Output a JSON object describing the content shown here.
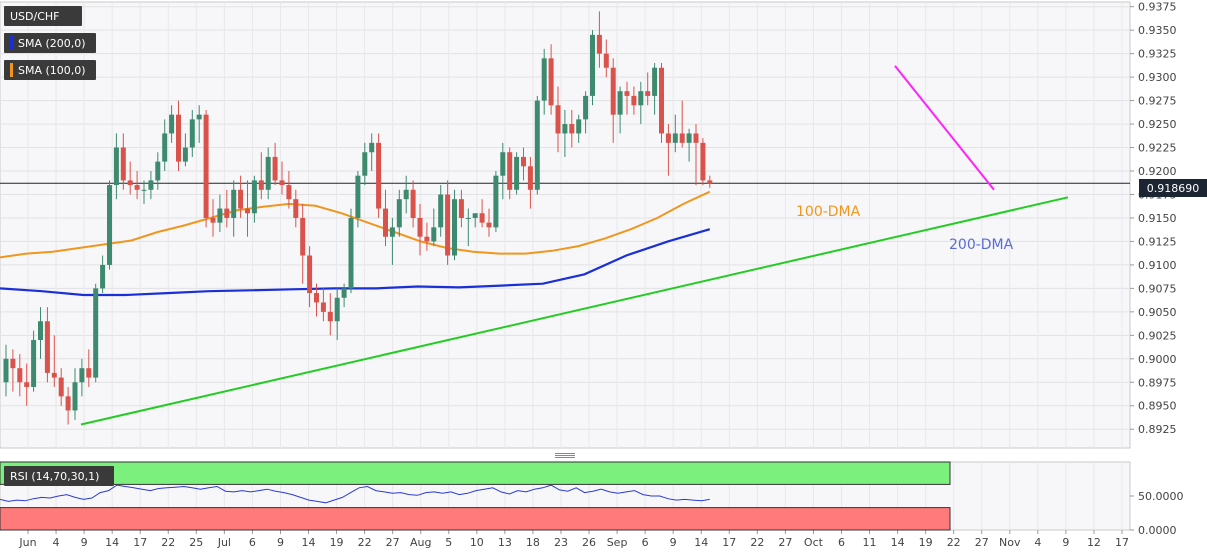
{
  "chart_data": {
    "type": "candlestick",
    "symbol": "USD/CHF",
    "last_price": "0.918690",
    "y_ticks": [
      "0.9375",
      "0.9350",
      "0.9325",
      "0.9300",
      "0.9275",
      "0.9250",
      "0.9225",
      "0.9200",
      "0.9175",
      "0.9150",
      "0.9125",
      "0.9100",
      "0.9075",
      "0.9050",
      "0.9025",
      "0.9000",
      "0.8975",
      "0.8950",
      "0.8925"
    ],
    "ylim": [
      0.8905,
      0.938
    ],
    "x_tick_labels": [
      "Jun",
      "4",
      "9",
      "14",
      "17",
      "22",
      "25",
      "Jul",
      "6",
      "9",
      "14",
      "19",
      "22",
      "27",
      "Aug",
      "5",
      "10",
      "13",
      "18",
      "23",
      "26",
      "Sep",
      "6",
      "9",
      "14",
      "17",
      "22",
      "27",
      "Oct",
      "6",
      "11",
      "14",
      "19",
      "22",
      "27",
      "Nov",
      "4",
      "9",
      "12",
      "17"
    ],
    "indicators": {
      "sma200_label": "SMA (200,0)",
      "sma100_label": "SMA (100,0)",
      "sma200_color": "#1a2fd6",
      "sma100_color": "#f0961e",
      "annotation_100": "100-DMA",
      "annotation_200": "200-DMA"
    },
    "trendline_colors": {
      "support": "#22cc22",
      "resistance": "#ff22ff"
    },
    "colors": {
      "up": "#3d8a6e",
      "down": "#d9524b"
    },
    "candles": [
      [
        0.8975,
        0.9015,
        0.896,
        0.9
      ],
      [
        0.9,
        0.901,
        0.8965,
        0.899
      ],
      [
        0.899,
        0.9005,
        0.896,
        0.8975
      ],
      [
        0.8975,
        0.8995,
        0.895,
        0.897
      ],
      [
        0.897,
        0.903,
        0.8965,
        0.902
      ],
      [
        0.902,
        0.9055,
        0.9,
        0.904
      ],
      [
        0.904,
        0.9055,
        0.8975,
        0.8985
      ],
      [
        0.8985,
        0.9025,
        0.897,
        0.898
      ],
      [
        0.898,
        0.899,
        0.895,
        0.896
      ],
      [
        0.896,
        0.897,
        0.893,
        0.8945
      ],
      [
        0.8945,
        0.899,
        0.8935,
        0.8975
      ],
      [
        0.8975,
        0.9,
        0.896,
        0.899
      ],
      [
        0.899,
        0.901,
        0.897,
        0.898
      ],
      [
        0.898,
        0.908,
        0.8975,
        0.9075
      ],
      [
        0.9075,
        0.911,
        0.907,
        0.91
      ],
      [
        0.91,
        0.919,
        0.9095,
        0.9185
      ],
      [
        0.9185,
        0.924,
        0.917,
        0.9225
      ],
      [
        0.9225,
        0.924,
        0.918,
        0.919
      ],
      [
        0.919,
        0.921,
        0.9175,
        0.9185
      ],
      [
        0.9185,
        0.92,
        0.917,
        0.918
      ],
      [
        0.918,
        0.919,
        0.9165,
        0.918
      ],
      [
        0.918,
        0.92,
        0.917,
        0.919
      ],
      [
        0.919,
        0.922,
        0.918,
        0.921
      ],
      [
        0.921,
        0.9255,
        0.92,
        0.924
      ],
      [
        0.924,
        0.927,
        0.923,
        0.926
      ],
      [
        0.926,
        0.9275,
        0.92,
        0.921
      ],
      [
        0.921,
        0.924,
        0.9205,
        0.9225
      ],
      [
        0.9225,
        0.9265,
        0.9215,
        0.9255
      ],
      [
        0.9255,
        0.927,
        0.923,
        0.926
      ],
      [
        0.926,
        0.9265,
        0.914,
        0.915
      ],
      [
        0.915,
        0.917,
        0.913,
        0.9145
      ],
      [
        0.9145,
        0.9175,
        0.9135,
        0.916
      ],
      [
        0.916,
        0.918,
        0.914,
        0.915
      ],
      [
        0.915,
        0.919,
        0.913,
        0.918
      ],
      [
        0.918,
        0.9195,
        0.915,
        0.916
      ],
      [
        0.916,
        0.919,
        0.913,
        0.9155
      ],
      [
        0.9155,
        0.9195,
        0.9145,
        0.919
      ],
      [
        0.919,
        0.922,
        0.917,
        0.918
      ],
      [
        0.918,
        0.9225,
        0.917,
        0.9215
      ],
      [
        0.9215,
        0.923,
        0.9185,
        0.919
      ],
      [
        0.919,
        0.921,
        0.9175,
        0.9185
      ],
      [
        0.9185,
        0.92,
        0.916,
        0.917
      ],
      [
        0.917,
        0.918,
        0.914,
        0.915
      ],
      [
        0.915,
        0.9165,
        0.908,
        0.911
      ],
      [
        0.911,
        0.912,
        0.9055,
        0.907
      ],
      [
        0.907,
        0.908,
        0.9045,
        0.906
      ],
      [
        0.906,
        0.9075,
        0.904,
        0.905
      ],
      [
        0.905,
        0.907,
        0.9025,
        0.904
      ],
      [
        0.904,
        0.9075,
        0.902,
        0.9065
      ],
      [
        0.9065,
        0.908,
        0.9055,
        0.9075
      ],
      [
        0.9075,
        0.916,
        0.907,
        0.915
      ],
      [
        0.915,
        0.92,
        0.914,
        0.9195
      ],
      [
        0.9195,
        0.923,
        0.9185,
        0.922
      ],
      [
        0.922,
        0.924,
        0.92,
        0.923
      ],
      [
        0.923,
        0.924,
        0.915,
        0.916
      ],
      [
        0.916,
        0.918,
        0.912,
        0.913
      ],
      [
        0.913,
        0.915,
        0.91,
        0.914
      ],
      [
        0.914,
        0.918,
        0.913,
        0.917
      ],
      [
        0.917,
        0.9195,
        0.9155,
        0.918
      ],
      [
        0.918,
        0.919,
        0.914,
        0.915
      ],
      [
        0.915,
        0.9165,
        0.911,
        0.913
      ],
      [
        0.913,
        0.9145,
        0.9115,
        0.9125
      ],
      [
        0.9125,
        0.916,
        0.912,
        0.914
      ],
      [
        0.914,
        0.9185,
        0.913,
        0.9175
      ],
      [
        0.9175,
        0.919,
        0.91,
        0.911
      ],
      [
        0.911,
        0.918,
        0.9105,
        0.917
      ],
      [
        0.917,
        0.918,
        0.914,
        0.915
      ],
      [
        0.915,
        0.916,
        0.912,
        0.915
      ],
      [
        0.915,
        0.9155,
        0.914,
        0.9155
      ],
      [
        0.9155,
        0.917,
        0.914,
        0.9145
      ],
      [
        0.9145,
        0.916,
        0.913,
        0.914
      ],
      [
        0.914,
        0.92,
        0.9135,
        0.9195
      ],
      [
        0.9195,
        0.923,
        0.917,
        0.922
      ],
      [
        0.922,
        0.9225,
        0.917,
        0.918
      ],
      [
        0.918,
        0.922,
        0.9175,
        0.9215
      ],
      [
        0.9215,
        0.9225,
        0.919,
        0.9205
      ],
      [
        0.9205,
        0.9215,
        0.916,
        0.918
      ],
      [
        0.918,
        0.928,
        0.9175,
        0.9275
      ],
      [
        0.9275,
        0.933,
        0.926,
        0.932
      ],
      [
        0.932,
        0.9335,
        0.926,
        0.927
      ],
      [
        0.927,
        0.929,
        0.922,
        0.924
      ],
      [
        0.924,
        0.9265,
        0.9215,
        0.925
      ],
      [
        0.925,
        0.9265,
        0.9225,
        0.924
      ],
      [
        0.924,
        0.926,
        0.923,
        0.9255
      ],
      [
        0.9255,
        0.9285,
        0.924,
        0.928
      ],
      [
        0.928,
        0.935,
        0.927,
        0.9345
      ],
      [
        0.9345,
        0.937,
        0.931,
        0.9325
      ],
      [
        0.9325,
        0.934,
        0.93,
        0.931
      ],
      [
        0.931,
        0.932,
        0.923,
        0.926
      ],
      [
        0.926,
        0.929,
        0.924,
        0.9285
      ],
      [
        0.9285,
        0.9295,
        0.926,
        0.928
      ],
      [
        0.928,
        0.929,
        0.926,
        0.927
      ],
      [
        0.927,
        0.9295,
        0.925,
        0.9285
      ],
      [
        0.9285,
        0.9305,
        0.927,
        0.928
      ],
      [
        0.928,
        0.9315,
        0.926,
        0.931
      ],
      [
        0.931,
        0.9315,
        0.923,
        0.924
      ],
      [
        0.924,
        0.925,
        0.9195,
        0.923
      ],
      [
        0.923,
        0.926,
        0.922,
        0.924
      ],
      [
        0.924,
        0.9275,
        0.9225,
        0.923
      ],
      [
        0.923,
        0.9245,
        0.921,
        0.924
      ],
      [
        0.924,
        0.925,
        0.9185,
        0.923
      ],
      [
        0.923,
        0.9235,
        0.9185,
        0.919
      ],
      [
        0.919,
        0.9195,
        0.9182,
        0.91869
      ]
    ],
    "sma100_values": [
      0.9108,
      0.9112,
      0.9114,
      0.9118,
      0.9122,
      0.9126,
      0.9135,
      0.9142,
      0.915,
      0.9158,
      0.9162,
      0.9165,
      0.9163,
      0.9155,
      0.9145,
      0.9135,
      0.9125,
      0.9118,
      0.9114,
      0.9112,
      0.9112,
      0.9115,
      0.912,
      0.9128,
      0.9138,
      0.915,
      0.9165,
      0.9178
    ],
    "sma200_values": [
      0.9075,
      0.9072,
      0.9068,
      0.9068,
      0.907,
      0.9072,
      0.9073,
      0.9074,
      0.9075,
      0.9075,
      0.9077,
      0.9076,
      0.9078,
      0.908,
      0.909,
      0.911,
      0.9125,
      0.9138
    ],
    "support_line": [
      [
        0.893
      ],
      [
        0.9172
      ]
    ],
    "resistance_line": [
      [
        0.9312
      ],
      [
        0.918
      ]
    ],
    "rsi": {
      "label": "RSI (14,70,30,1)",
      "y_ticks": [
        "50.0000",
        "0.0000"
      ],
      "overbought": 70,
      "oversold": 30,
      "values": [
        45,
        42,
        44,
        43,
        46,
        48,
        47,
        50,
        52,
        48,
        45,
        47,
        55,
        58,
        66,
        64,
        62,
        60,
        58,
        61,
        62,
        63,
        64,
        62,
        60,
        62,
        64,
        57,
        56,
        58,
        56,
        58,
        60,
        57,
        55,
        52,
        48,
        44,
        42,
        40,
        44,
        48,
        55,
        62,
        64,
        58,
        56,
        54,
        55,
        52,
        51,
        55,
        56,
        54,
        56,
        52,
        54,
        58,
        60,
        62,
        56,
        53,
        58,
        56,
        60,
        62,
        66,
        59,
        57,
        62,
        55,
        57,
        60,
        56,
        54,
        56,
        58,
        52,
        50,
        50,
        46,
        44,
        45,
        44,
        43,
        45
      ]
    }
  }
}
